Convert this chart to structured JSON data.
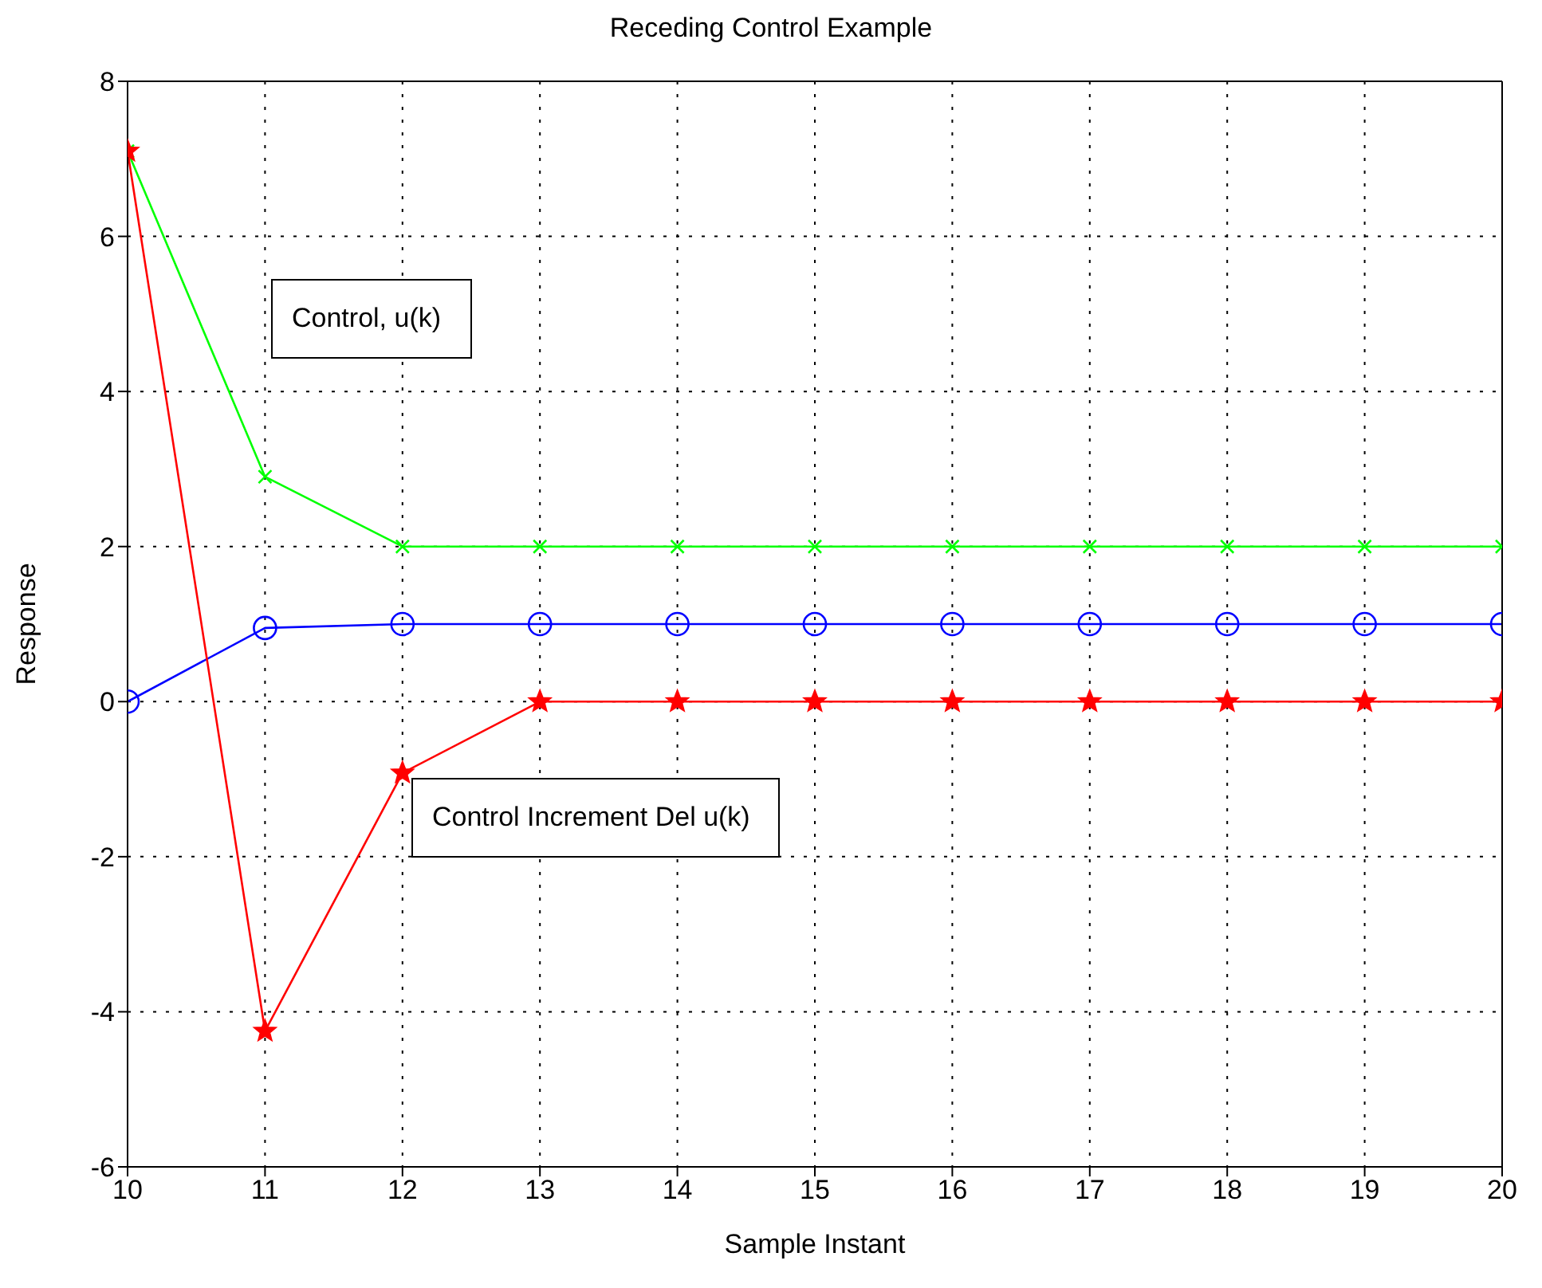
{
  "chart_data": {
    "type": "line",
    "title": "Receding Control Example",
    "xlabel": "Sample Instant",
    "ylabel": "Response",
    "x": [
      10,
      11,
      12,
      13,
      14,
      15,
      16,
      17,
      18,
      19,
      20
    ],
    "series": [
      {
        "color": "#00ff00",
        "marker": "cross",
        "values": [
          7.1,
          2.9,
          2,
          2,
          2,
          2,
          2,
          2,
          2,
          2,
          2
        ]
      },
      {
        "color": "#0000ff",
        "marker": "circle",
        "values": [
          0,
          0.95,
          1,
          1,
          1,
          1,
          1,
          1,
          1,
          1,
          1
        ]
      },
      {
        "color": "#ff0000",
        "marker": "star",
        "values": [
          7.1,
          -4.25,
          -0.92,
          0,
          0,
          0,
          0,
          0,
          0,
          0,
          0
        ]
      }
    ],
    "xlim": [
      10,
      20
    ],
    "xticks": [
      10,
      11,
      12,
      13,
      14,
      15,
      16,
      17,
      18,
      19,
      20
    ],
    "ylim": [
      -6,
      8
    ],
    "yticks": [
      -6,
      -4,
      -2,
      0,
      2,
      4,
      6,
      8
    ],
    "grid": true,
    "legend": false,
    "line_style": "solid",
    "annotations": [
      "Control, u(k)",
      "Control Increment Del u(k)"
    ]
  }
}
